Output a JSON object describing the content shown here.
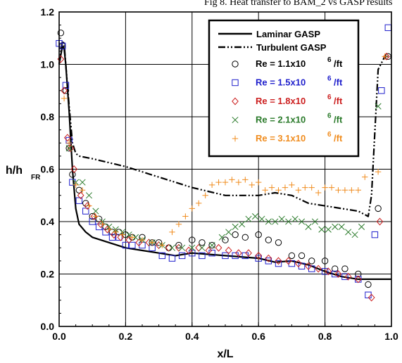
{
  "chart_data": {
    "type": "scatter",
    "title": "Fig 8. Heat transfer to BAM_2 vs GASP results",
    "xlabel": "x/L",
    "ylabel_main": "h/h",
    "ylabel_sub": "FR",
    "xlim": [
      0,
      1
    ],
    "ylim": [
      0,
      1.2
    ],
    "xticks": [
      "0.0",
      "0.2",
      "0.4",
      "0.6",
      "0.8",
      "1.0"
    ],
    "yticks": [
      "0.0",
      "0.2",
      "0.4",
      "0.6",
      "0.8",
      "1.0",
      "1.2"
    ],
    "grid": true,
    "legend_position": "top-right",
    "lines": [
      {
        "name": "Laminar GASP",
        "style": "solid",
        "x": [
          0,
          0.01,
          0.015,
          0.02,
          0.03,
          0.04,
          0.05,
          0.06,
          0.08,
          0.1,
          0.15,
          0.2,
          0.25,
          0.3,
          0.35,
          0.4,
          0.5,
          0.6,
          0.65,
          0.7,
          0.75,
          0.8,
          0.85,
          0.9,
          0.95,
          1.0
        ],
        "y": [
          1.0,
          1.07,
          1.06,
          1.0,
          0.82,
          0.6,
          0.45,
          0.39,
          0.36,
          0.34,
          0.32,
          0.3,
          0.29,
          0.28,
          0.27,
          0.28,
          0.27,
          0.26,
          0.245,
          0.25,
          0.235,
          0.21,
          0.19,
          0.18,
          0.18,
          0.18
        ]
      },
      {
        "name": "Turbulent GASP",
        "style": "dashdotdot",
        "x": [
          0,
          0.01,
          0.015,
          0.02,
          0.03,
          0.04,
          0.05,
          0.06,
          0.1,
          0.2,
          0.3,
          0.4,
          0.5,
          0.6,
          0.65,
          0.7,
          0.75,
          0.8,
          0.85,
          0.9,
          0.93,
          0.94,
          0.96,
          0.98,
          1.0
        ],
        "y": [
          1.0,
          1.09,
          1.08,
          1.0,
          0.84,
          0.7,
          0.66,
          0.65,
          0.64,
          0.61,
          0.57,
          0.53,
          0.5,
          0.5,
          0.51,
          0.5,
          0.47,
          0.46,
          0.45,
          0.44,
          0.42,
          0.5,
          0.98,
          1.03,
          1.03
        ]
      }
    ],
    "series": [
      {
        "name": "Re = 1.1x10",
        "exp": "6",
        "unit": "/ft",
        "color": "#000000",
        "marker": "circle",
        "x": [
          0.005,
          0.01,
          0.02,
          0.03,
          0.04,
          0.06,
          0.08,
          0.1,
          0.12,
          0.14,
          0.16,
          0.18,
          0.2,
          0.22,
          0.25,
          0.28,
          0.3,
          0.33,
          0.36,
          0.4,
          0.43,
          0.46,
          0.5,
          0.53,
          0.56,
          0.6,
          0.63,
          0.66,
          0.7,
          0.73,
          0.76,
          0.8,
          0.83,
          0.86,
          0.9,
          0.93,
          0.96,
          0.99
        ],
        "y": [
          1.12,
          1.07,
          0.9,
          0.68,
          0.58,
          0.52,
          0.47,
          0.42,
          0.41,
          0.38,
          0.36,
          0.36,
          0.35,
          0.34,
          0.34,
          0.32,
          0.32,
          0.3,
          0.31,
          0.33,
          0.32,
          0.31,
          0.33,
          0.35,
          0.34,
          0.35,
          0.33,
          0.32,
          0.27,
          0.27,
          0.25,
          0.25,
          0.22,
          0.22,
          0.2,
          0.16,
          0.45,
          1.03
        ]
      },
      {
        "name": "Re = 1.5x10",
        "exp": "6",
        "unit": "/ft",
        "color": "#1f1fcc",
        "marker": "square",
        "x": [
          0.0,
          0.01,
          0.02,
          0.03,
          0.04,
          0.06,
          0.08,
          0.1,
          0.12,
          0.14,
          0.16,
          0.18,
          0.2,
          0.22,
          0.25,
          0.28,
          0.31,
          0.34,
          0.37,
          0.4,
          0.43,
          0.46,
          0.5,
          0.53,
          0.56,
          0.6,
          0.63,
          0.66,
          0.7,
          0.73,
          0.76,
          0.8,
          0.83,
          0.86,
          0.9,
          0.93,
          0.95,
          0.97,
          0.99
        ],
        "y": [
          1.08,
          1.07,
          0.92,
          0.71,
          0.55,
          0.48,
          0.44,
          0.4,
          0.38,
          0.36,
          0.34,
          0.34,
          0.31,
          0.31,
          0.31,
          0.3,
          0.27,
          0.26,
          0.27,
          0.28,
          0.27,
          0.28,
          0.27,
          0.27,
          0.27,
          0.26,
          0.25,
          0.24,
          0.24,
          0.23,
          0.22,
          0.21,
          0.2,
          0.19,
          0.18,
          0.12,
          0.35,
          0.9,
          1.14
        ]
      },
      {
        "name": "Re = 1.8x10",
        "exp": "6",
        "unit": "/ft",
        "color": "#cc1f1f",
        "marker": "diamond",
        "x": [
          0.005,
          0.015,
          0.025,
          0.035,
          0.045,
          0.065,
          0.085,
          0.105,
          0.125,
          0.145,
          0.165,
          0.185,
          0.21,
          0.24,
          0.27,
          0.3,
          0.33,
          0.36,
          0.39,
          0.42,
          0.45,
          0.48,
          0.51,
          0.54,
          0.57,
          0.6,
          0.63,
          0.66,
          0.69,
          0.72,
          0.75,
          0.78,
          0.81,
          0.84,
          0.87,
          0.9,
          0.94,
          0.965,
          0.985
        ],
        "y": [
          1.02,
          0.9,
          0.72,
          0.68,
          0.6,
          0.5,
          0.46,
          0.42,
          0.39,
          0.37,
          0.35,
          0.34,
          0.33,
          0.32,
          0.32,
          0.31,
          0.3,
          0.3,
          0.29,
          0.3,
          0.29,
          0.3,
          0.29,
          0.28,
          0.28,
          0.27,
          0.26,
          0.25,
          0.25,
          0.24,
          0.23,
          0.22,
          0.21,
          0.2,
          0.19,
          0.18,
          0.11,
          0.4,
          1.03
        ]
      },
      {
        "name": "Re = 2.1x10",
        "exp": "6",
        "unit": "/ft",
        "color": "#2a7a2a",
        "marker": "cross",
        "x": [
          0.03,
          0.05,
          0.07,
          0.09,
          0.11,
          0.13,
          0.15,
          0.17,
          0.19,
          0.21,
          0.23,
          0.25,
          0.28,
          0.31,
          0.34,
          0.37,
          0.4,
          0.43,
          0.46,
          0.49,
          0.51,
          0.53,
          0.55,
          0.57,
          0.59,
          0.61,
          0.63,
          0.65,
          0.67,
          0.69,
          0.71,
          0.73,
          0.75,
          0.77,
          0.79,
          0.81,
          0.83,
          0.85,
          0.87,
          0.89,
          0.91,
          0.96
        ],
        "y": [
          0.68,
          0.55,
          0.55,
          0.5,
          0.44,
          0.4,
          0.38,
          0.37,
          0.36,
          0.35,
          0.34,
          0.33,
          0.32,
          0.31,
          0.3,
          0.3,
          0.3,
          0.3,
          0.31,
          0.34,
          0.36,
          0.38,
          0.39,
          0.41,
          0.42,
          0.41,
          0.4,
          0.4,
          0.41,
          0.4,
          0.41,
          0.4,
          0.38,
          0.4,
          0.37,
          0.37,
          0.38,
          0.38,
          0.36,
          0.35,
          0.38,
          0.84
        ]
      },
      {
        "name": "Re = 3.1x10",
        "exp": "6",
        "unit": "/ft",
        "color": "#f08c1e",
        "marker": "plus",
        "x": [
          0.015,
          0.03,
          0.05,
          0.07,
          0.09,
          0.11,
          0.13,
          0.15,
          0.17,
          0.19,
          0.22,
          0.25,
          0.28,
          0.31,
          0.34,
          0.36,
          0.38,
          0.4,
          0.42,
          0.44,
          0.46,
          0.48,
          0.5,
          0.52,
          0.54,
          0.56,
          0.58,
          0.6,
          0.62,
          0.64,
          0.66,
          0.68,
          0.7,
          0.72,
          0.74,
          0.76,
          0.78,
          0.8,
          0.82,
          0.84,
          0.86,
          0.88,
          0.9,
          0.92,
          0.96,
          0.98
        ],
        "y": [
          0.87,
          0.7,
          0.54,
          0.52,
          0.46,
          0.42,
          0.39,
          0.37,
          0.36,
          0.35,
          0.34,
          0.33,
          0.32,
          0.31,
          0.36,
          0.39,
          0.42,
          0.45,
          0.47,
          0.5,
          0.54,
          0.55,
          0.55,
          0.56,
          0.55,
          0.56,
          0.54,
          0.55,
          0.52,
          0.53,
          0.52,
          0.53,
          0.54,
          0.52,
          0.53,
          0.53,
          0.51,
          0.53,
          0.53,
          0.52,
          0.52,
          0.52,
          0.52,
          0.57,
          0.59,
          1.03
        ]
      }
    ]
  }
}
